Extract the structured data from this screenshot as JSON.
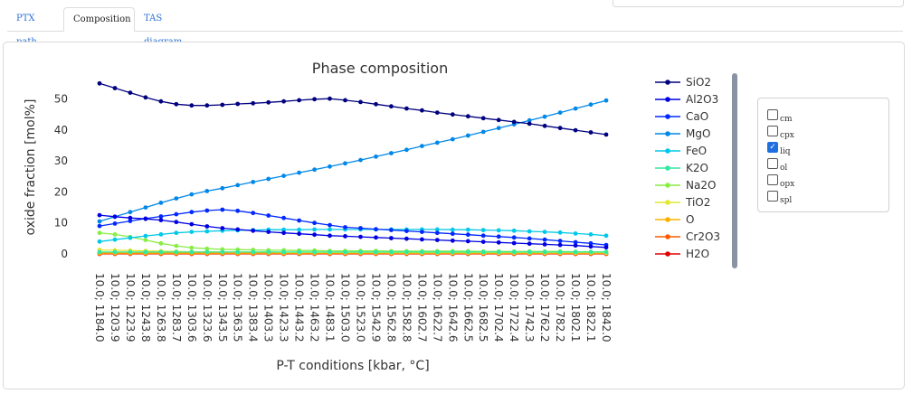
{
  "tabs": [
    {
      "label": "PTX path",
      "active": false
    },
    {
      "label": "Composition",
      "active": true
    },
    {
      "label": "TAS diagram",
      "active": false
    }
  ],
  "phase_filter": [
    {
      "label": "cm",
      "checked": false
    },
    {
      "label": "cpx",
      "checked": false
    },
    {
      "label": "liq",
      "checked": true
    },
    {
      "label": "ol",
      "checked": false
    },
    {
      "label": "opx",
      "checked": false
    },
    {
      "label": "spl",
      "checked": false
    }
  ],
  "chart_data": {
    "type": "line",
    "title": "Phase composition",
    "xlabel": "P-T conditions [kbar, °C]",
    "ylabel": "oxide fraction [mol%]",
    "ylim": [
      -1.5,
      57
    ],
    "yticks": [
      0,
      10,
      20,
      30,
      40,
      50
    ],
    "grid": false,
    "legend": "right",
    "categories": [
      "10.0; 1184.0",
      "10.0; 1203.9",
      "10.0; 1223.9",
      "10.0; 1243.8",
      "10.0; 1263.8",
      "10.0; 1283.7",
      "10.0; 1303.6",
      "10.0; 1323.6",
      "10.0; 1343.5",
      "10.0; 1363.5",
      "10.0; 1383.4",
      "10.0; 1403.3",
      "10.0; 1423.3",
      "10.0; 1443.2",
      "10.0; 1463.2",
      "10.0; 1483.1",
      "10.0; 1503.0",
      "10.0; 1523.0",
      "10.0; 1542.9",
      "10.0; 1562.8",
      "10.0; 1582.8",
      "10.0; 1602.7",
      "10.0; 1622.7",
      "10.0; 1642.6",
      "10.0; 1662.5",
      "10.0; 1682.5",
      "10.0; 1702.4",
      "10.0; 1722.4",
      "10.0; 1742.3",
      "10.0; 1762.2",
      "10.0; 1782.2",
      "10.0; 1802.1",
      "10.0; 1822.1",
      "10.0; 1842.0"
    ],
    "series": [
      {
        "name": "SiO2",
        "color": "#00007f",
        "values": [
          55.0,
          53.5,
          52.0,
          50.5,
          49.2,
          48.3,
          47.9,
          47.9,
          48.1,
          48.4,
          48.6,
          48.9,
          49.2,
          49.6,
          49.9,
          50.1,
          49.6,
          49.0,
          48.3,
          47.6,
          46.9,
          46.3,
          45.6,
          45.0,
          44.4,
          43.8,
          43.2,
          42.6,
          42.0,
          41.3,
          40.6,
          39.9,
          39.2,
          38.5
        ]
      },
      {
        "name": "Al2O3",
        "color": "#0000e0",
        "values": [
          12.5,
          12.0,
          11.6,
          11.3,
          10.9,
          10.3,
          9.6,
          8.9,
          8.3,
          7.9,
          7.5,
          7.1,
          6.8,
          6.5,
          6.2,
          5.9,
          5.7,
          5.5,
          5.3,
          5.1,
          4.9,
          4.7,
          4.5,
          4.3,
          4.1,
          3.9,
          3.7,
          3.5,
          3.3,
          3.1,
          2.9,
          2.7,
          2.4,
          2.1
        ]
      },
      {
        "name": "CaO",
        "color": "#0028ff",
        "values": [
          9.0,
          9.8,
          10.6,
          11.4,
          12.1,
          12.8,
          13.5,
          14.0,
          14.3,
          13.9,
          13.2,
          12.4,
          11.6,
          10.8,
          10.0,
          9.3,
          8.6,
          8.3,
          8.0,
          7.7,
          7.4,
          7.1,
          6.8,
          6.5,
          6.2,
          5.9,
          5.6,
          5.3,
          5.0,
          4.6,
          4.2,
          3.8,
          3.4,
          2.9
        ]
      },
      {
        "name": "MgO",
        "color": "#0088e8",
        "values": [
          10.5,
          12.0,
          13.5,
          15.0,
          16.5,
          17.9,
          19.2,
          20.3,
          21.2,
          22.2,
          23.2,
          24.2,
          25.2,
          26.2,
          27.2,
          28.2,
          29.2,
          30.3,
          31.4,
          32.5,
          33.6,
          34.8,
          35.9,
          37.0,
          38.2,
          39.4,
          40.6,
          41.8,
          43.1,
          44.3,
          45.6,
          46.9,
          48.2,
          49.5
        ]
      },
      {
        "name": "FeO",
        "color": "#00c8e8",
        "values": [
          4.0,
          4.6,
          5.2,
          5.8,
          6.3,
          6.8,
          7.1,
          7.3,
          7.5,
          7.6,
          7.7,
          7.8,
          7.8,
          7.8,
          7.9,
          7.9,
          7.9,
          7.9,
          7.9,
          7.9,
          7.9,
          7.9,
          7.9,
          7.8,
          7.8,
          7.7,
          7.6,
          7.5,
          7.3,
          7.1,
          6.9,
          6.6,
          6.3,
          5.9
        ]
      },
      {
        "name": "K2O",
        "color": "#30e8a0",
        "values": [
          0.6,
          0.6,
          0.6,
          0.6,
          0.6,
          0.6,
          0.6,
          0.6,
          0.6,
          0.6,
          0.6,
          0.6,
          0.6,
          0.6,
          0.6,
          0.6,
          0.6,
          0.6,
          0.6,
          0.6,
          0.6,
          0.6,
          0.6,
          0.6,
          0.6,
          0.6,
          0.6,
          0.6,
          0.6,
          0.6,
          0.6,
          0.6,
          0.6,
          0.6
        ]
      },
      {
        "name": "Na2O",
        "color": "#88ee44",
        "values": [
          6.8,
          6.3,
          5.5,
          4.5,
          3.4,
          2.6,
          2.0,
          1.7,
          1.5,
          1.4,
          1.3,
          1.2,
          1.2,
          1.1,
          1.1,
          1.0,
          1.0,
          1.0,
          1.0,
          0.9,
          0.9,
          0.9,
          0.9,
          0.9,
          0.9,
          0.8,
          0.8,
          0.8,
          0.8,
          0.8,
          0.8,
          0.7,
          0.7,
          0.7
        ]
      },
      {
        "name": "TiO2",
        "color": "#e0e830",
        "values": [
          1.3,
          1.2,
          1.1,
          1.0,
          0.9,
          0.8,
          0.7,
          0.7,
          0.6,
          0.6,
          0.6,
          0.6,
          0.5,
          0.5,
          0.5,
          0.5,
          0.5,
          0.5,
          0.5,
          0.4,
          0.4,
          0.4,
          0.4,
          0.4,
          0.4,
          0.4,
          0.4,
          0.4,
          0.4,
          0.4,
          0.4,
          0.4,
          0.4,
          0.4
        ]
      },
      {
        "name": "O",
        "color": "#ffb000",
        "values": [
          0.3,
          0.3,
          0.3,
          0.3,
          0.3,
          0.3,
          0.3,
          0.3,
          0.3,
          0.3,
          0.3,
          0.3,
          0.3,
          0.3,
          0.3,
          0.3,
          0.3,
          0.3,
          0.3,
          0.3,
          0.3,
          0.3,
          0.3,
          0.3,
          0.3,
          0.3,
          0.3,
          0.3,
          0.3,
          0.3,
          0.3,
          0.3,
          0.3,
          0.3
        ]
      },
      {
        "name": "Cr2O3",
        "color": "#ff5a00",
        "values": [
          0.1,
          0.1,
          0.1,
          0.1,
          0.1,
          0.1,
          0.1,
          0.1,
          0.1,
          0.1,
          0.1,
          0.1,
          0.1,
          0.1,
          0.1,
          0.1,
          0.1,
          0.1,
          0.1,
          0.1,
          0.1,
          0.1,
          0.1,
          0.1,
          0.1,
          0.1,
          0.1,
          0.1,
          0.1,
          0.1,
          0.1,
          0.1,
          0.1,
          0.1
        ]
      },
      {
        "name": "H2O",
        "color": "#e00000",
        "values": [
          0.0,
          0.0,
          0.0,
          0.0,
          0.0,
          0.0,
          0.0,
          0.0,
          0.0,
          0.0,
          0.0,
          0.0,
          0.0,
          0.0,
          0.0,
          0.0,
          0.0,
          0.0,
          0.0,
          0.0,
          0.0,
          0.0,
          0.0,
          0.0,
          0.0,
          0.0,
          0.0,
          0.0,
          0.0,
          0.0,
          0.0,
          0.0,
          0.0,
          0.0
        ]
      }
    ]
  }
}
